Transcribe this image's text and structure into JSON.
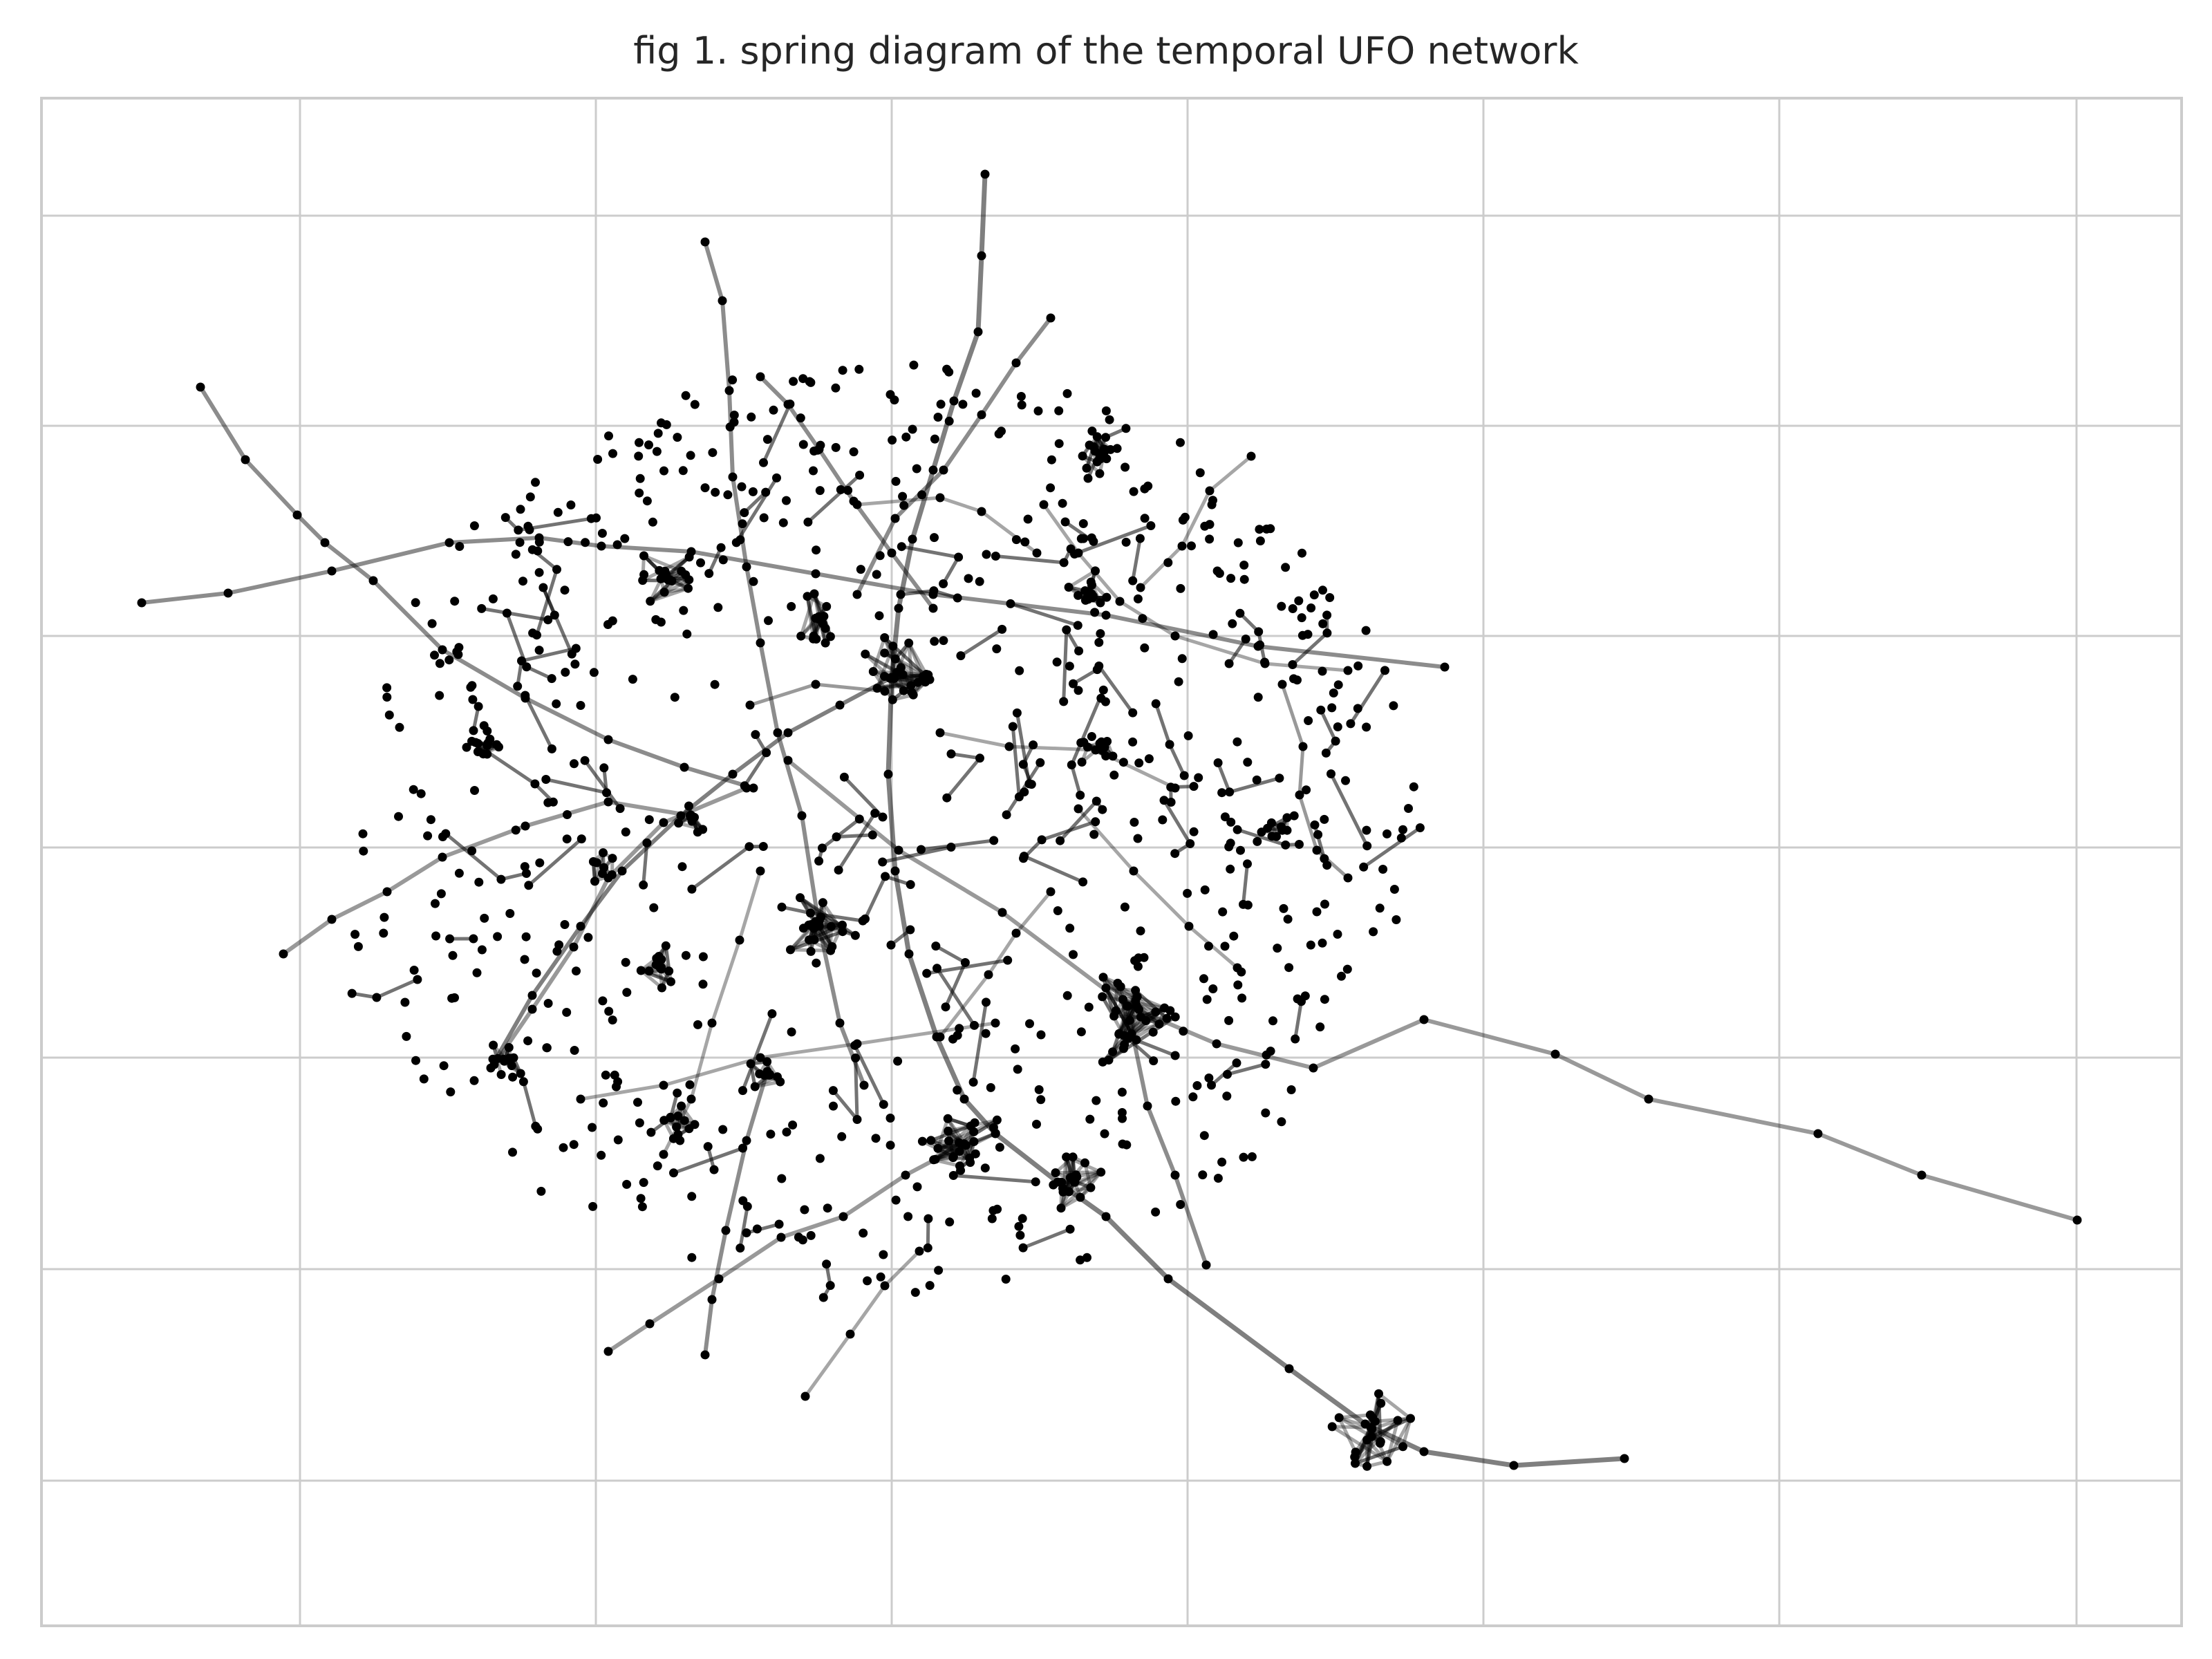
{
  "figure": {
    "title": "fig 1. spring diagram of the temporal UFO network"
  },
  "chart_data": {
    "type": "network",
    "title": "fig 1. spring diagram of the temporal UFO network",
    "xlabel": "",
    "ylabel": "",
    "grid": true,
    "tick_labels_shown": false,
    "colors": {
      "node": "#000000",
      "edge": "#000000",
      "grid": "#cccccc",
      "frame": "#cccccc",
      "background": "#ffffff"
    }
  }
}
